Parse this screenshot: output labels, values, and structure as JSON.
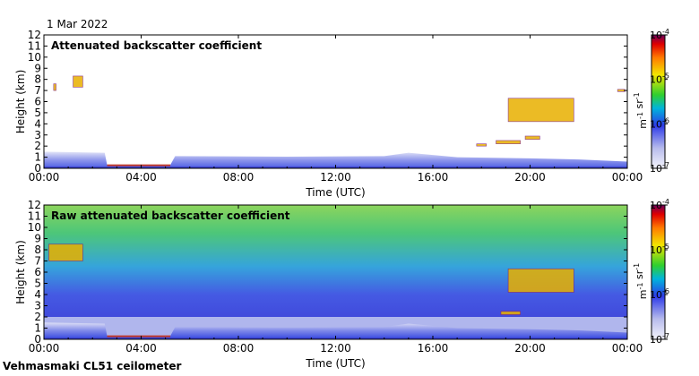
{
  "header": {
    "date": "1 Mar 2022"
  },
  "footer": {
    "instrument": "Vehmasmaki CL51 ceilometer"
  },
  "chart_data": [
    {
      "type": "heatmap",
      "title": "Attenuated backscatter coefficient",
      "xlabel": "Time (UTC)",
      "ylabel": "Height (km)",
      "xlim": [
        0,
        24
      ],
      "ylim": [
        0,
        12
      ],
      "xticks": [
        "00:00",
        "04:00",
        "08:00",
        "12:00",
        "16:00",
        "20:00",
        "00:00"
      ],
      "yticks": [
        0,
        1,
        2,
        3,
        4,
        5,
        6,
        7,
        8,
        9,
        10,
        11,
        12
      ],
      "colorbar": {
        "scale": "log",
        "min": "10^-7",
        "max": "10^-4",
        "labels": [
          "10-7",
          "10-6",
          "10-5",
          "10-4"
        ],
        "unit": "m-1 sr-1"
      },
      "features": [
        {
          "name": "boundary layer",
          "t_start": 0,
          "t_end": 24,
          "h_top": 1.5
        },
        {
          "name": "cloud",
          "t_start": 0.4,
          "t_end": 0.5,
          "h_bottom": 7.0,
          "h_top": 7.6
        },
        {
          "name": "cloud",
          "t_start": 1.2,
          "t_end": 1.6,
          "h_bottom": 7.3,
          "h_top": 8.3
        },
        {
          "name": "cloud",
          "t_start": 17.8,
          "t_end": 18.2,
          "h_bottom": 2.0,
          "h_top": 2.2
        },
        {
          "name": "cloud",
          "t_start": 18.6,
          "t_end": 19.6,
          "h_bottom": 2.2,
          "h_top": 2.5
        },
        {
          "name": "cloud",
          "t_start": 19.8,
          "t_end": 20.4,
          "h_bottom": 2.6,
          "h_top": 2.9
        },
        {
          "name": "cloud",
          "t_start": 19.1,
          "t_end": 21.8,
          "h_bottom": 4.2,
          "h_top": 6.3
        },
        {
          "name": "cloud",
          "t_start": 23.6,
          "t_end": 23.9,
          "h_bottom": 6.9,
          "h_top": 7.1
        }
      ]
    },
    {
      "type": "heatmap",
      "title": "Raw attenuated backscatter coefficient",
      "xlabel": "Time (UTC)",
      "ylabel": "Height (km)",
      "xlim": [
        0,
        24
      ],
      "ylim": [
        0,
        12
      ],
      "xticks": [
        "00:00",
        "04:00",
        "08:00",
        "12:00",
        "16:00",
        "20:00",
        "00:00"
      ],
      "yticks": [
        0,
        1,
        2,
        3,
        4,
        5,
        6,
        7,
        8,
        9,
        10,
        11,
        12
      ],
      "colorbar": {
        "scale": "log",
        "min": "10^-7",
        "max": "10^-4",
        "labels": [
          "10-7",
          "10-6",
          "10-5",
          "10-4"
        ],
        "unit": "m-1 sr-1"
      },
      "features": [
        {
          "name": "noise floor",
          "t_start": 0,
          "t_end": 24,
          "h_bottom": 2,
          "h_top": 12
        },
        {
          "name": "boundary layer",
          "t_start": 0,
          "t_end": 24,
          "h_top": 1.5
        },
        {
          "name": "cloud",
          "t_start": 0.2,
          "t_end": 1.6,
          "h_bottom": 7.0,
          "h_top": 8.5
        },
        {
          "name": "cloud",
          "t_start": 19.1,
          "t_end": 21.8,
          "h_bottom": 4.2,
          "h_top": 6.3
        },
        {
          "name": "cloud",
          "t_start": 18.8,
          "t_end": 19.6,
          "h_bottom": 2.2,
          "h_top": 2.5
        }
      ]
    }
  ]
}
